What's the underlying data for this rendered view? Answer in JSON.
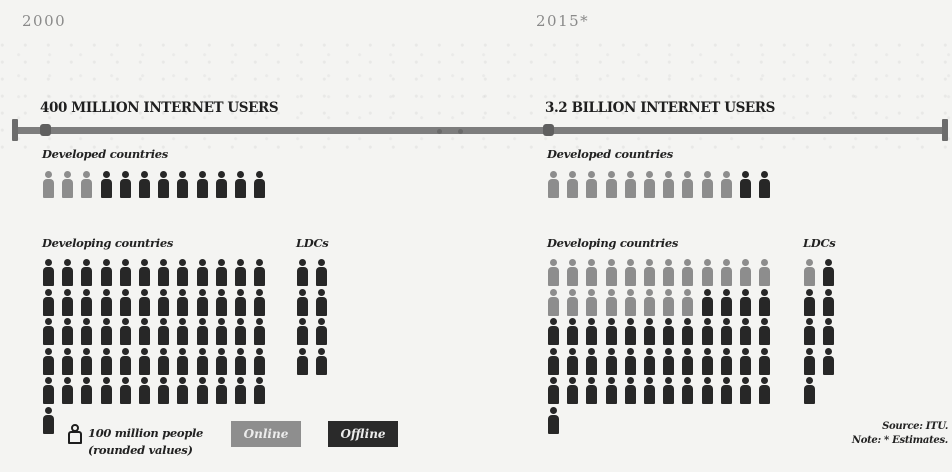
{
  "years": {
    "left": "2000",
    "right": "2015*"
  },
  "headlines": {
    "left": "400 MILLION INTERNET USERS",
    "right": "3.2 BILLION INTERNET USERS"
  },
  "group_labels": {
    "developed": "Developed countries",
    "developing": "Developing countries",
    "ldcs": "LDCs"
  },
  "legend": {
    "unit_line1": "100 million people",
    "unit_line2": "(rounded values)",
    "online_label": "Online",
    "offline_label": "Offline"
  },
  "source": {
    "line1": "Source: ITU.",
    "line2": "Note: * Estimates."
  },
  "colors": {
    "online": "#8d8d8d",
    "offline": "#272727",
    "timeline": "#7d7d7d"
  },
  "icon_names": [
    "person-icon"
  ],
  "chart_data": {
    "type": "pictograph",
    "unit": "100 million people (rounded values)",
    "panels": [
      {
        "year": "2000",
        "title": "400 MILLION INTERNET USERS",
        "groups": [
          {
            "name": "Developed countries",
            "total": 12,
            "online": 3
          },
          {
            "name": "Developing countries",
            "total": 61,
            "online": 0
          },
          {
            "name": "LDCs",
            "total": 8,
            "online": 0
          }
        ]
      },
      {
        "year": "2015*",
        "title": "3.2 BILLION INTERNET USERS",
        "groups": [
          {
            "name": "Developed countries",
            "total": 12,
            "online": 10
          },
          {
            "name": "Developing countries",
            "total": 61,
            "online": 20
          },
          {
            "name": "LDCs",
            "total": 9,
            "online": 1
          }
        ]
      }
    ]
  }
}
